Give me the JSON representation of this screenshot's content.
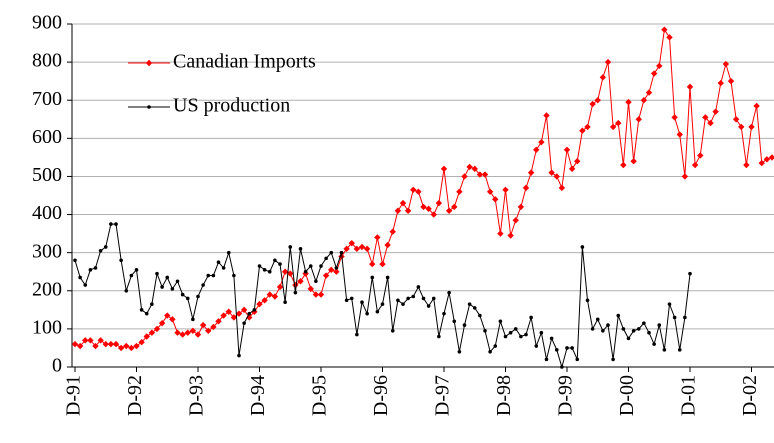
{
  "chart_data": {
    "type": "line",
    "categories": [
      "D-91",
      null,
      null,
      null,
      null,
      null,
      null,
      null,
      null,
      null,
      null,
      null,
      "D-92",
      null,
      null,
      null,
      null,
      null,
      null,
      null,
      null,
      null,
      null,
      null,
      "D-93",
      null,
      null,
      null,
      null,
      null,
      null,
      null,
      null,
      null,
      null,
      null,
      "D-94",
      null,
      null,
      null,
      null,
      null,
      null,
      null,
      null,
      null,
      null,
      null,
      "D-95",
      null,
      null,
      null,
      null,
      null,
      null,
      null,
      null,
      null,
      null,
      null,
      "D-96",
      null,
      null,
      null,
      null,
      null,
      null,
      null,
      null,
      null,
      null,
      null,
      "D-97",
      null,
      null,
      null,
      null,
      null,
      null,
      null,
      null,
      null,
      null,
      null,
      "D-98",
      null,
      null,
      null,
      null,
      null,
      null,
      null,
      null,
      null,
      null,
      null,
      "D-99",
      null,
      null,
      null,
      null,
      null,
      null,
      null,
      null,
      null,
      null,
      null,
      "D-00",
      null,
      null,
      null,
      null,
      null,
      null,
      null,
      null,
      null,
      null,
      null,
      "D-01",
      null,
      null,
      null,
      null,
      null,
      null,
      null,
      null,
      null,
      null,
      null,
      "D-02",
      null,
      null,
      null,
      null
    ],
    "series": [
      {
        "name": "Canadian Imports",
        "color": "#ff0000",
        "marker": "diamond",
        "values": [
          60,
          55,
          70,
          70,
          55,
          70,
          60,
          60,
          60,
          50,
          55,
          50,
          55,
          65,
          80,
          90,
          100,
          115,
          135,
          125,
          90,
          85,
          90,
          95,
          85,
          110,
          95,
          105,
          120,
          135,
          145,
          130,
          140,
          150,
          130,
          145,
          165,
          175,
          190,
          185,
          210,
          250,
          245,
          215,
          225,
          245,
          205,
          190,
          190,
          240,
          255,
          250,
          290,
          310,
          325,
          310,
          315,
          310,
          270,
          340,
          270,
          320,
          355,
          410,
          430,
          410,
          465,
          460,
          420,
          415,
          400,
          430,
          520,
          410,
          420,
          460,
          500,
          525,
          520,
          505,
          505,
          460,
          440,
          350,
          465,
          345,
          385,
          420,
          470,
          510,
          570,
          590,
          660,
          510,
          500,
          470,
          570,
          520,
          540,
          620,
          630,
          690,
          700,
          760,
          800,
          630,
          640,
          530,
          695,
          540,
          650,
          700,
          720,
          770,
          790,
          885,
          865,
          655,
          610,
          500,
          735,
          530,
          555,
          655,
          640,
          670,
          745,
          795,
          750,
          650,
          630,
          530,
          630,
          685,
          535,
          545,
          550
        ]
      },
      {
        "name": "US production",
        "color": "#000000",
        "marker": "circle",
        "values": [
          280,
          235,
          215,
          255,
          260,
          305,
          315,
          375,
          375,
          280,
          200,
          240,
          255,
          150,
          140,
          165,
          245,
          210,
          235,
          205,
          225,
          190,
          180,
          125,
          185,
          215,
          240,
          240,
          275,
          260,
          300,
          240,
          30,
          115,
          140,
          150,
          265,
          255,
          250,
          280,
          270,
          170,
          315,
          195,
          310,
          250,
          265,
          225,
          265,
          285,
          300,
          260,
          300,
          175,
          180,
          85,
          170,
          140,
          235,
          145,
          165,
          235,
          95,
          175,
          165,
          180,
          185,
          210,
          180,
          160,
          180,
          80,
          140,
          195,
          120,
          40,
          110,
          165,
          155,
          135,
          95,
          40,
          55,
          120,
          80,
          90,
          100,
          80,
          85,
          130,
          55,
          90,
          20,
          75,
          45,
          0,
          50,
          50,
          20,
          315,
          175,
          100,
          125,
          95,
          110,
          20,
          135,
          100,
          75,
          95,
          100,
          115,
          90,
          60,
          110,
          45,
          165,
          130,
          45,
          130,
          245,
          null,
          null,
          null,
          null,
          null,
          null,
          null,
          null,
          null,
          null,
          null,
          null,
          null,
          null,
          null,
          null
        ]
      }
    ],
    "ylim": [
      0,
      900
    ],
    "yticks": [
      0,
      100,
      200,
      300,
      400,
      500,
      600,
      700,
      800,
      900
    ],
    "grid": true,
    "legend": "top-left"
  }
}
